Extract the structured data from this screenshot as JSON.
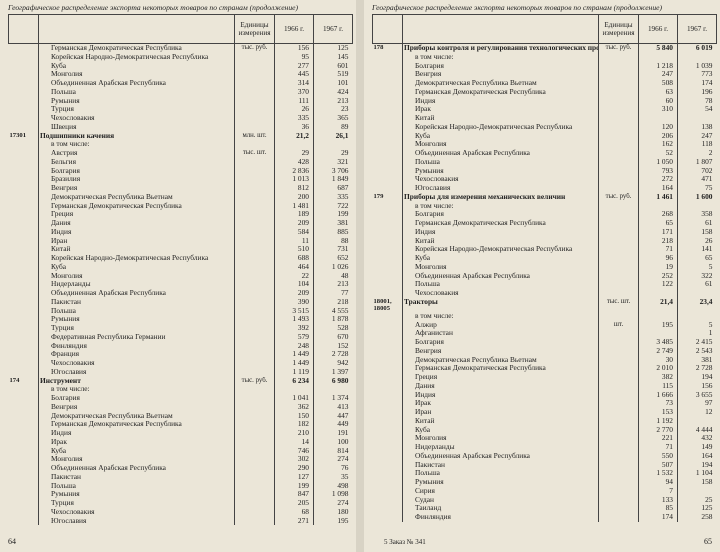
{
  "left_page": {
    "header": "Географическое распределение экспорта некоторых товаров по странам (продолжение)",
    "columns": {
      "unit": "Единицы измерения",
      "y1966": "1966 г.",
      "y1967": "1967 г."
    },
    "rows": [
      {
        "n": "Германская Демократическая Республика",
        "u": "тыс. руб.",
        "a": "156",
        "b": "125"
      },
      {
        "n": "Корейская Народно-Демократическая Республика",
        "a": "95",
        "b": "145"
      },
      {
        "n": "Куба",
        "a": "277",
        "b": "601"
      },
      {
        "n": "Монголия",
        "a": "445",
        "b": "519"
      },
      {
        "n": "Объединенная Арабская Республика",
        "a": "314",
        "b": "101"
      },
      {
        "n": "Польша",
        "a": "370",
        "b": "424"
      },
      {
        "n": "Румыния",
        "a": "111",
        "b": "213"
      },
      {
        "n": "Турция",
        "a": "26",
        "b": "23"
      },
      {
        "n": "Чехословакия",
        "a": "335",
        "b": "365"
      },
      {
        "n": "Швеция",
        "a": "36",
        "b": "89"
      },
      {
        "c": "17301",
        "n": "Подшипники качения",
        "u": "млн. шт.",
        "a": "21,2",
        "b": "26,1"
      },
      {
        "n": "в том числе:"
      },
      {
        "n": "Австрия",
        "u": "тыс. шт.",
        "a": "29",
        "b": "29"
      },
      {
        "n": "Бельгия",
        "a": "428",
        "b": "321"
      },
      {
        "n": "Болгария",
        "a": "2 836",
        "b": "3 706"
      },
      {
        "n": "Бразилия",
        "a": "1 013",
        "b": "1 849"
      },
      {
        "n": "Венгрия",
        "a": "812",
        "b": "687"
      },
      {
        "n": "Демократическая Республика Вьетнам",
        "a": "200",
        "b": "335"
      },
      {
        "n": "Германская Демократическая Республика",
        "a": "1 481",
        "b": "722"
      },
      {
        "n": "Греция",
        "a": "189",
        "b": "199"
      },
      {
        "n": "Дания",
        "a": "209",
        "b": "381"
      },
      {
        "n": "Индия",
        "a": "584",
        "b": "885"
      },
      {
        "n": "Иран",
        "a": "11",
        "b": "88"
      },
      {
        "n": "Китай",
        "a": "510",
        "b": "731"
      },
      {
        "n": "Корейская Народно-Демократическая Республика",
        "a": "688",
        "b": "652"
      },
      {
        "n": "Куба",
        "a": "464",
        "b": "1 026"
      },
      {
        "n": "Монголия",
        "a": "22",
        "b": "48"
      },
      {
        "n": "Нидерланды",
        "a": "104",
        "b": "213"
      },
      {
        "n": "Объединенная Арабская Республика",
        "a": "209",
        "b": "77"
      },
      {
        "n": "Пакистан",
        "a": "390",
        "b": "218"
      },
      {
        "n": "Польша",
        "a": "3 515",
        "b": "4 555"
      },
      {
        "n": "Румыния",
        "a": "1 493",
        "b": "1 878"
      },
      {
        "n": "Турция",
        "a": "392",
        "b": "528"
      },
      {
        "n": "Федеративная Республика Германии",
        "a": "579",
        "b": "670"
      },
      {
        "n": "Финляндия",
        "a": "248",
        "b": "152"
      },
      {
        "n": "Франция",
        "a": "1 449",
        "b": "2 728"
      },
      {
        "n": "Чехословакия",
        "a": "1 449",
        "b": "942"
      },
      {
        "n": "Югославия",
        "a": "1 119",
        "b": "1 397"
      },
      {
        "c": "174",
        "n": "Инструмент",
        "u": "тыс. руб.",
        "a": "6 234",
        "b": "6 980"
      },
      {
        "n": "в том числе:"
      },
      {
        "n": "Болгария",
        "a": "1 041",
        "b": "1 374"
      },
      {
        "n": "Венгрия",
        "a": "362",
        "b": "413"
      },
      {
        "n": "Демократическая Республика Вьетнам",
        "a": "150",
        "b": "447"
      },
      {
        "n": "Германская Демократическая Республика",
        "a": "182",
        "b": "449"
      },
      {
        "n": "Индия",
        "a": "210",
        "b": "191"
      },
      {
        "n": "Ирак",
        "a": "14",
        "b": "100"
      },
      {
        "n": "Куба",
        "a": "746",
        "b": "814"
      },
      {
        "n": "Монголия",
        "a": "302",
        "b": "274"
      },
      {
        "n": "Объединенная Арабская Республика",
        "a": "290",
        "b": "76"
      },
      {
        "n": "Пакистан",
        "a": "127",
        "b": "35"
      },
      {
        "n": "Польша",
        "a": "199",
        "b": "498"
      },
      {
        "n": "Румыния",
        "a": "847",
        "b": "1 098"
      },
      {
        "n": "Турция",
        "a": "205",
        "b": "274"
      },
      {
        "n": "Чехословакия",
        "a": "68",
        "b": "180"
      },
      {
        "n": "Югославия",
        "a": "271",
        "b": "195"
      }
    ],
    "page_number": "64"
  },
  "right_page": {
    "header": "Географическое распределение экспорта некоторых товаров по странам (продолжение)",
    "columns": {
      "unit": "Единицы измерения",
      "y1966": "1966 г.",
      "y1967": "1967 г."
    },
    "rows": [
      {
        "c": "178",
        "n": "Приборы контроля и регулирования технологических процессов, лабораторное оборудование",
        "u": "тыс. руб.",
        "a": "5 840",
        "b": "6 019"
      },
      {
        "n": "в том числе:"
      },
      {
        "n": "Болгария",
        "a": "1 218",
        "b": "1 039"
      },
      {
        "n": "Венгрия",
        "a": "247",
        "b": "773"
      },
      {
        "n": "Демократическая Республика Вьетнам",
        "a": "508",
        "b": "174"
      },
      {
        "n": "Германская Демократическая Республика",
        "a": "63",
        "b": "196"
      },
      {
        "n": "Индия",
        "a": "60",
        "b": "78"
      },
      {
        "n": "Ирак",
        "a": "310",
        "b": "54"
      },
      {
        "n": "Китай"
      },
      {
        "n": "Корейская Народно-Демократическая Республика",
        "a": "120",
        "b": "138"
      },
      {
        "n": "Куба",
        "a": "206",
        "b": "247"
      },
      {
        "n": "Монголия",
        "a": "162",
        "b": "118"
      },
      {
        "n": "Объединенная Арабская Республика",
        "a": "52",
        "b": "2"
      },
      {
        "n": "Польша",
        "a": "1 050",
        "b": "1 807"
      },
      {
        "n": "Румыния",
        "a": "793",
        "b": "702"
      },
      {
        "n": "Чехословакия",
        "a": "272",
        "b": "471"
      },
      {
        "n": "Югославия",
        "a": "164",
        "b": "75"
      },
      {
        "c": "179",
        "n": "Приборы для измерения механических величин",
        "u": "тыс. руб.",
        "a": "1 461",
        "b": "1 600"
      },
      {
        "n": "в том числе:"
      },
      {
        "n": "Болгария",
        "a": "268",
        "b": "358"
      },
      {
        "n": "Германская Демократическая Республика",
        "a": "65",
        "b": "61"
      },
      {
        "n": "Индия",
        "a": "171",
        "b": "158"
      },
      {
        "n": "Китай",
        "a": "218",
        "b": "26"
      },
      {
        "n": "Корейская Народно-Демократическая Республика",
        "a": "71",
        "b": "141"
      },
      {
        "n": "Куба",
        "a": "96",
        "b": "65"
      },
      {
        "n": "Монголия",
        "a": "19",
        "b": "5"
      },
      {
        "n": "Объединенная Арабская Республика",
        "a": "252",
        "b": "322"
      },
      {
        "n": "Польша",
        "a": "122",
        "b": "61"
      },
      {
        "n": "Чехословакия"
      },
      {
        "c": "18001, 18005",
        "n": "Тракторы",
        "u": "тыс. шт.",
        "a": "21,4",
        "b": "23,4"
      },
      {
        "n": "в том числе:"
      },
      {
        "n": "Алжир",
        "u": "шт.",
        "a": "195",
        "b": "5"
      },
      {
        "n": "Афганистан",
        "b": "1"
      },
      {
        "n": "Болгария",
        "a": "3 485",
        "b": "2 415"
      },
      {
        "n": "Венгрия",
        "a": "2 749",
        "b": "2 543"
      },
      {
        "n": "Демократическая Республика Вьетнам",
        "a": "30",
        "b": "381"
      },
      {
        "n": "Германская Демократическая Республика",
        "a": "2 010",
        "b": "2 728"
      },
      {
        "n": "Греция",
        "a": "382",
        "b": "194"
      },
      {
        "n": "Дания",
        "a": "115",
        "b": "156"
      },
      {
        "n": "Индия",
        "a": "1 666",
        "b": "3 655"
      },
      {
        "n": "Ирак",
        "a": "73",
        "b": "97"
      },
      {
        "n": "Иран",
        "a": "153",
        "b": "12"
      },
      {
        "n": "Китай",
        "a": "1 192"
      },
      {
        "n": "Куба",
        "a": "2 770",
        "b": "4 444"
      },
      {
        "n": "Монголия",
        "a": "221",
        "b": "432"
      },
      {
        "n": "Нидерланды",
        "a": "71",
        "b": "149"
      },
      {
        "n": "Объединенная Арабская Республика",
        "a": "550",
        "b": "164"
      },
      {
        "n": "Пакистан",
        "a": "507",
        "b": "194"
      },
      {
        "n": "Польша",
        "a": "1 532",
        "b": "1 104"
      },
      {
        "n": "Румыния",
        "a": "94",
        "b": "158"
      },
      {
        "n": "Сирия",
        "a": "7"
      },
      {
        "n": "Судан",
        "a": "133",
        "b": "25"
      },
      {
        "n": "Таиланд",
        "a": "85",
        "b": "125"
      },
      {
        "n": "Финляндия",
        "a": "174",
        "b": "258"
      }
    ],
    "footer_note": "5 Заказ № 341",
    "page_number": "65"
  }
}
